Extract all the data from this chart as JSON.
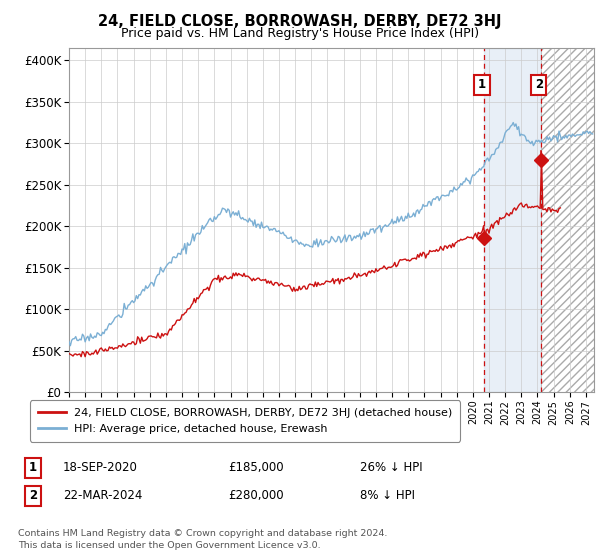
{
  "title": "24, FIELD CLOSE, BORROWASH, DERBY, DE72 3HJ",
  "subtitle": "Price paid vs. HM Land Registry's House Price Index (HPI)",
  "ylabel_ticks": [
    "£0",
    "£50K",
    "£100K",
    "£150K",
    "£200K",
    "£250K",
    "£300K",
    "£350K",
    "£400K"
  ],
  "ytick_values": [
    0,
    50000,
    100000,
    150000,
    200000,
    250000,
    300000,
    350000,
    400000
  ],
  "ylim": [
    0,
    415000
  ],
  "xlim_start": 1995.0,
  "xlim_end": 2027.5,
  "hpi_color": "#7bafd4",
  "price_color": "#cc1111",
  "ann1_x": 2020.72,
  "ann1_y": 185000,
  "ann1_label": "1",
  "ann1_date": "18-SEP-2020",
  "ann1_price": "£185,000",
  "ann1_pct": "26% ↓ HPI",
  "ann2_x": 2024.23,
  "ann2_y": 280000,
  "ann2_label": "2",
  "ann2_date": "22-MAR-2024",
  "ann2_price": "£280,000",
  "ann2_pct": "8% ↓ HPI",
  "legend_line1": "24, FIELD CLOSE, BORROWASH, DERBY, DE72 3HJ (detached house)",
  "legend_line2": "HPI: Average price, detached house, Erewash",
  "footnote": "Contains HM Land Registry data © Crown copyright and database right 2024.\nThis data is licensed under the Open Government Licence v3.0.",
  "grid_color": "#cccccc",
  "bg_color": "#ffffff",
  "shade1_start": 2020.72,
  "shade1_end": 2024.23,
  "shade2_start": 2024.23,
  "shade2_end": 2027.5
}
